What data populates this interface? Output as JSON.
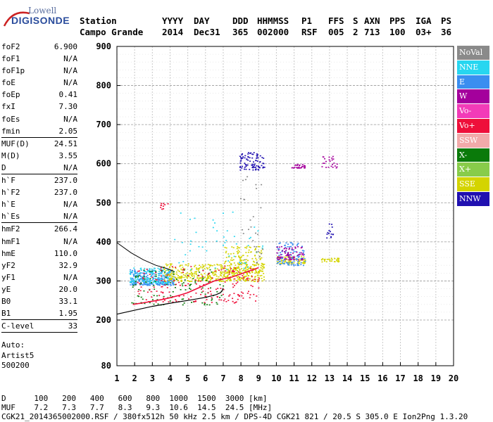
{
  "logo": {
    "line1": "Lowell",
    "line2": "DIGISONDE"
  },
  "header": {
    "labels": [
      "Station",
      "YYYY",
      "DAY",
      "DDD",
      "HHMMSS",
      "P1",
      "FFS",
      "S",
      "AXN",
      "PPS",
      "IGA",
      "PS"
    ],
    "values": [
      "Campo Grande",
      "2014",
      "Dec31",
      "365",
      "002000",
      "RSF",
      "005",
      "2",
      "713",
      "100",
      "03+",
      "36"
    ]
  },
  "params": [
    {
      "k": "foF2",
      "v": "6.900"
    },
    {
      "k": "foF1",
      "v": "N/A"
    },
    {
      "k": "foF1p",
      "v": "N/A"
    },
    {
      "k": "foE",
      "v": "N/A"
    },
    {
      "k": "foEp",
      "v": "0.41"
    },
    {
      "k": "fxI",
      "v": "7.30"
    },
    {
      "k": "foEs",
      "v": "N/A"
    },
    {
      "k": "fmin",
      "v": "2.05"
    },
    {
      "sep": true
    },
    {
      "k": "MUF(D)",
      "v": "24.51"
    },
    {
      "k": "M(D)",
      "v": "3.55"
    },
    {
      "k": "D",
      "v": "N/A"
    },
    {
      "sep": true
    },
    {
      "k": "h`F",
      "v": "237.0"
    },
    {
      "k": "h`F2",
      "v": "237.0"
    },
    {
      "k": "h`E",
      "v": "N/A"
    },
    {
      "k": "h`Es",
      "v": "N/A"
    },
    {
      "sep": true
    },
    {
      "k": "hmF2",
      "v": "266.4"
    },
    {
      "k": "hmF1",
      "v": "N/A"
    },
    {
      "k": "hmE",
      "v": "110.0"
    },
    {
      "k": "yF2",
      "v": "32.9"
    },
    {
      "k": "yF1",
      "v": "N/A"
    },
    {
      "k": "yE",
      "v": "20.0"
    },
    {
      "k": "B0",
      "v": "33.1"
    },
    {
      "k": "B1",
      "v": "1.95"
    },
    {
      "sep": true
    },
    {
      "k": "C-level",
      "v": "33"
    },
    {
      "sep": true
    }
  ],
  "auto": [
    "Auto:",
    "Artist5",
    "500200"
  ],
  "legend": [
    {
      "label": "NoVal",
      "color": "#8a8a8a"
    },
    {
      "label": "NNE",
      "color": "#27d6f0"
    },
    {
      "label": "E",
      "color": "#3a8ef0"
    },
    {
      "label": "W",
      "color": "#a4009c"
    },
    {
      "label": "Vo-",
      "color": "#f23bb8"
    },
    {
      "label": "Vo+",
      "color": "#ee0f3a"
    },
    {
      "label": "SSW",
      "color": "#f2aaaa"
    },
    {
      "label": "X-",
      "color": "#0a7a0a"
    },
    {
      "label": "X+",
      "color": "#88cc4a"
    },
    {
      "label": "SSE",
      "color": "#d4d400"
    },
    {
      "label": "NNW",
      "color": "#2010b0"
    }
  ],
  "bottom": {
    "row1_label": "D",
    "row1_values": [
      "100",
      "200",
      "400",
      "600",
      "800",
      "1000",
      "1500",
      "3000"
    ],
    "row1_unit": "[km]",
    "row2_label": "MUF",
    "row2_values": [
      "7.2",
      "7.3",
      "7.7",
      "8.3",
      "9.3",
      "10.6",
      "14.5",
      "24.5"
    ],
    "row2_unit": "[MHz]",
    "footer": "CGK21_2014365002000.RSF / 380fx512h 50 kHz 2.5 km / DPS-4D CGK21 821 / 20.5 S 305.0 E Ion2Png 1.3.20"
  },
  "chart_data": {
    "type": "scatter",
    "x_ticks": [
      "1",
      "2",
      "3",
      "4",
      "5",
      "6",
      "7",
      "8",
      "9",
      "10",
      "11",
      "12",
      "13",
      "14",
      "15",
      "16",
      "17",
      "18",
      "19",
      "20"
    ],
    "y_ticks": [
      "80",
      "200",
      "300",
      "400",
      "500",
      "600",
      "700",
      "800",
      "900"
    ],
    "xlim": [
      1,
      20
    ],
    "ylim": [
      80,
      900
    ],
    "xlabel": "",
    "ylabel": "",
    "clusters": [
      {
        "name": "E",
        "color": "#3a8ef0",
        "x": [
          1.7,
          4.2
        ],
        "y": [
          290,
          330
        ],
        "n": 260
      },
      {
        "name": "NNE",
        "color": "#27d6f0",
        "x": [
          1.7,
          4.0
        ],
        "y": [
          295,
          335
        ],
        "n": 140
      },
      {
        "name": "SSE",
        "color": "#d4d400",
        "x": [
          3.6,
          9.3
        ],
        "y": [
          300,
          345
        ],
        "n": 420
      },
      {
        "name": "SSE",
        "color": "#d4d400",
        "x": [
          7.0,
          9.2
        ],
        "y": [
          320,
          390
        ],
        "n": 160
      },
      {
        "name": "X-",
        "color": "#0a7a0a",
        "x": [
          1.8,
          7.0
        ],
        "y": [
          240,
          330
        ],
        "n": 120
      },
      {
        "name": "Vo+",
        "color": "#ee0f3a",
        "x": [
          2.1,
          9.0
        ],
        "y": [
          245,
          340
        ],
        "n": 180
      },
      {
        "name": "SSE",
        "color": "#d4d400",
        "x": [
          10.0,
          11.6
        ],
        "y": [
          345,
          365
        ],
        "n": 90
      },
      {
        "name": "E",
        "color": "#3a8ef0",
        "x": [
          10.0,
          11.6
        ],
        "y": [
          340,
          400
        ],
        "n": 110
      },
      {
        "name": "W",
        "color": "#a4009c",
        "x": [
          10.0,
          11.5
        ],
        "y": [
          355,
          390
        ],
        "n": 70
      },
      {
        "name": "NNW",
        "color": "#2010b0",
        "x": [
          7.9,
          9.3
        ],
        "y": [
          585,
          630
        ],
        "n": 90
      },
      {
        "name": "W",
        "color": "#a4009c",
        "x": [
          10.8,
          11.6
        ],
        "y": [
          590,
          600
        ],
        "n": 30
      },
      {
        "name": "W",
        "color": "#a4009c",
        "x": [
          12.5,
          13.4
        ],
        "y": [
          590,
          620
        ],
        "n": 24
      },
      {
        "name": "SSE",
        "color": "#d4d400",
        "x": [
          12.5,
          13.5
        ],
        "y": [
          350,
          362
        ],
        "n": 30
      },
      {
        "name": "NNW",
        "color": "#2010b0",
        "x": [
          12.8,
          13.2
        ],
        "y": [
          410,
          450
        ],
        "n": 14
      },
      {
        "name": "Vo+",
        "color": "#ee0f3a",
        "x": [
          3.3,
          3.9
        ],
        "y": [
          485,
          500
        ],
        "n": 10
      },
      {
        "name": "NNE",
        "color": "#27d6f0",
        "x": [
          4.0,
          9.4
        ],
        "y": [
          330,
          480
        ],
        "n": 50
      },
      {
        "name": "NoVal",
        "color": "#8a8a8a",
        "x": [
          7.9,
          9.3
        ],
        "y": [
          345,
          570
        ],
        "n": 30
      }
    ],
    "profile_x": [
      1.0,
      2.0,
      3.0,
      4.0,
      5.0,
      6.0,
      6.6,
      6.85,
      6.95,
      7.0
    ],
    "profile_y": [
      215,
      225,
      235,
      243,
      250,
      258,
      265,
      270,
      276,
      282
    ],
    "upper_curve_x": [
      1.0,
      1.8,
      2.5,
      3.2,
      3.8,
      4.2
    ],
    "upper_curve_y": [
      398,
      372,
      354,
      340,
      332,
      325
    ],
    "trace_x": [
      1.9,
      2.5,
      3.0,
      3.5,
      4.0,
      4.5,
      5.0,
      5.5,
      6.0,
      6.5,
      7.0,
      7.5,
      8.0,
      8.5,
      9.0
    ],
    "trace_y": [
      240,
      244,
      248,
      252,
      257,
      263,
      270,
      280,
      290,
      300,
      305,
      310,
      318,
      326,
      334
    ]
  }
}
